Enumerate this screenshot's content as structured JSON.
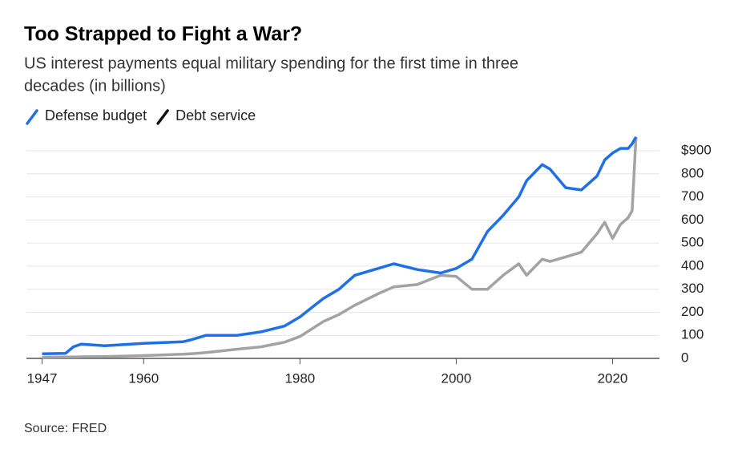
{
  "chart_data": {
    "type": "line",
    "title": "Too Strapped to Fight a War?",
    "subtitle": [
      "US interest payments equal military spending for the first time in three",
      "decades (in billions)"
    ],
    "source": "Source: FRED",
    "x": [
      1947,
      1950,
      1951,
      1952,
      1955,
      1960,
      1965,
      1966,
      1968,
      1972,
      1975,
      1978,
      1980,
      1983,
      1985,
      1987,
      1990,
      1992,
      1995,
      1998,
      2000,
      2002,
      2004,
      2006,
      2008,
      2009,
      2011,
      2012,
      2014,
      2016,
      2018,
      2019,
      2020,
      2021,
      2022,
      2022.5,
      2023
    ],
    "series": [
      {
        "name": "Defense budget",
        "color": "#1f6fe8",
        "values": [
          20,
          22,
          50,
          62,
          55,
          65,
          72,
          80,
          100,
          100,
          115,
          140,
          180,
          260,
          300,
          360,
          390,
          410,
          385,
          370,
          390,
          430,
          550,
          620,
          700,
          770,
          840,
          820,
          740,
          730,
          790,
          860,
          890,
          910,
          910,
          930,
          960
        ]
      },
      {
        "name": "Debt service",
        "color": "#a3a3a3",
        "values": [
          5,
          6,
          6,
          7,
          8,
          12,
          18,
          20,
          25,
          40,
          50,
          70,
          95,
          160,
          190,
          230,
          280,
          310,
          320,
          360,
          355,
          300,
          300,
          360,
          410,
          360,
          430,
          420,
          440,
          460,
          540,
          590,
          520,
          580,
          610,
          640,
          960
        ]
      }
    ],
    "xlim": [
      1945,
      2026
    ],
    "xticks": [
      1947,
      1960,
      1980,
      2000,
      2020
    ],
    "ylim": [
      0,
      980
    ],
    "yticks": [
      0,
      100,
      200,
      300,
      400,
      500,
      600,
      700,
      800,
      {
        "value": 900,
        "label": "$900"
      }
    ],
    "grid": true
  }
}
